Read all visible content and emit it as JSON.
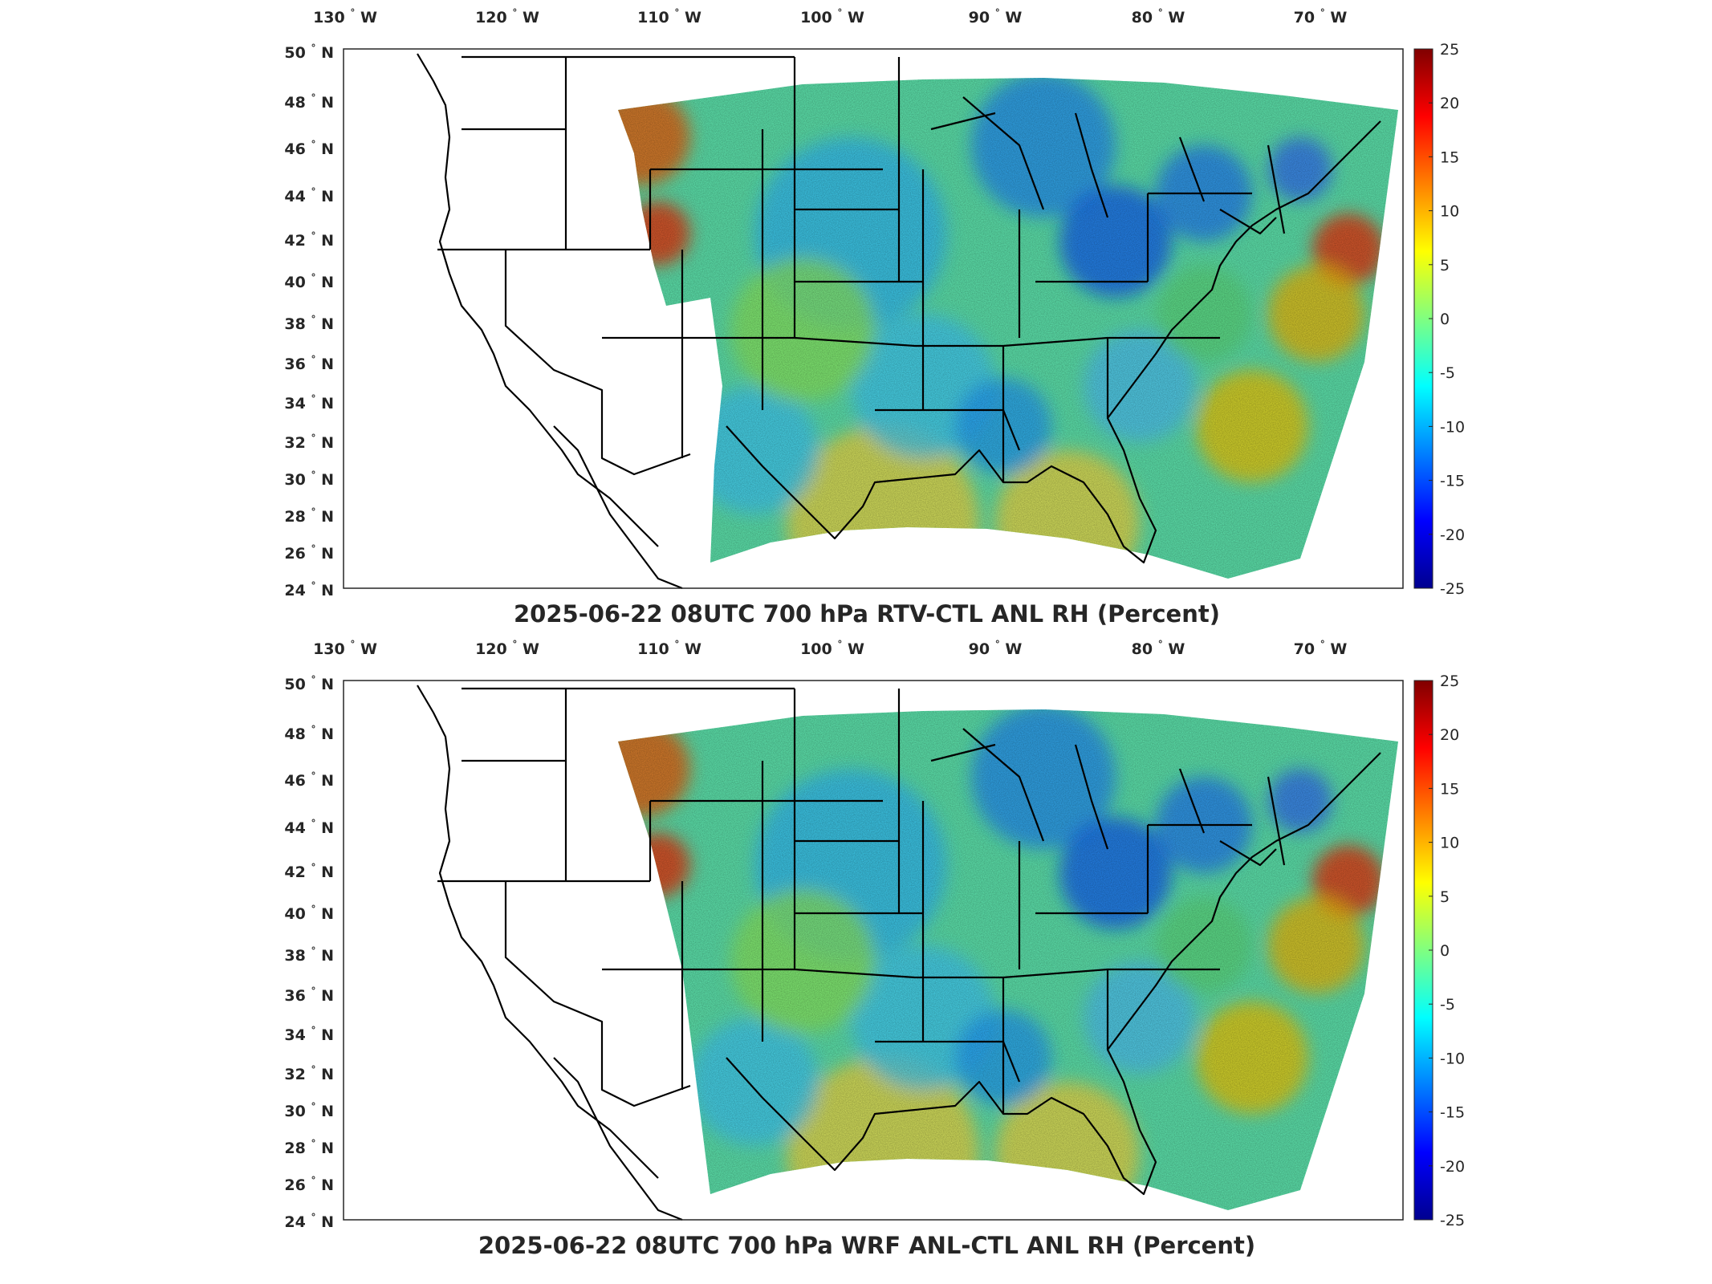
{
  "palette": [
    "#00008f",
    "#0000ff",
    "#0080ff",
    "#00ffff",
    "#80ff80",
    "#ffff00",
    "#ff8000",
    "#ff0000",
    "#800000"
  ],
  "panels": [
    {
      "title": "2025-06-22 08UTC 700 hPa RTV-CTL ANL RH (Percent)",
      "lon_ticks": [
        "130",
        "120",
        "110",
        "100",
        "90",
        "80",
        "70"
      ],
      "lon_hemisphere": "W",
      "lat_ticks": [
        "50",
        "48",
        "46",
        "44",
        "42",
        "40",
        "38",
        "36",
        "34",
        "32",
        "30",
        "28",
        "26",
        "24"
      ],
      "lat_hemisphere": "N",
      "degree_symbol": "°",
      "colorbar_ticks": [
        "25",
        "20",
        "15",
        "10",
        "5",
        "0",
        "-5",
        "-10",
        "-15",
        "-20",
        "-25"
      ],
      "colorbar_range": [
        -25,
        25
      ]
    },
    {
      "title": "2025-06-22 08UTC 700 hPa WRF ANL-CTL ANL RH (Percent)",
      "lon_ticks": [
        "130",
        "120",
        "110",
        "100",
        "90",
        "80",
        "70"
      ],
      "lon_hemisphere": "W",
      "lat_ticks": [
        "50",
        "48",
        "46",
        "44",
        "42",
        "40",
        "38",
        "36",
        "34",
        "32",
        "30",
        "28",
        "26",
        "24"
      ],
      "lat_hemisphere": "N",
      "degree_symbol": "°",
      "colorbar_ticks": [
        "25",
        "20",
        "15",
        "10",
        "5",
        "0",
        "-5",
        "-10",
        "-15",
        "-20",
        "-25"
      ],
      "colorbar_range": [
        -25,
        25
      ]
    }
  ]
}
